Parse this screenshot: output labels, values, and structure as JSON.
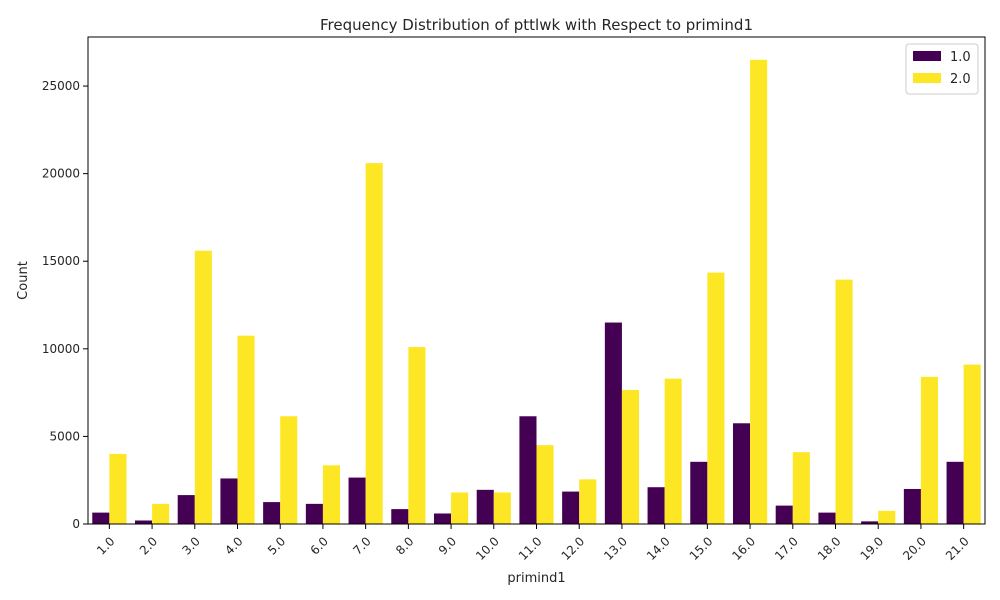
{
  "chart_data": {
    "type": "bar",
    "title": "Frequency Distribution of pttlwk with Respect to primind1",
    "xlabel": "primind1",
    "ylabel": "Count",
    "ylim": [
      0,
      27800
    ],
    "yticks": [
      0,
      5000,
      10000,
      15000,
      20000,
      25000
    ],
    "ytick_labels": [
      "0",
      "5000",
      "10000",
      "15000",
      "20000",
      "25000"
    ],
    "categories": [
      "1.0",
      "2.0",
      "3.0",
      "4.0",
      "5.0",
      "6.0",
      "7.0",
      "8.0",
      "9.0",
      "10.0",
      "11.0",
      "12.0",
      "13.0",
      "14.0",
      "15.0",
      "16.0",
      "17.0",
      "18.0",
      "19.0",
      "20.0",
      "21.0"
    ],
    "series": [
      {
        "name": "1.0",
        "color": "#440154",
        "values": [
          650,
          200,
          1650,
          2600,
          1250,
          1150,
          2650,
          850,
          600,
          1950,
          6150,
          1850,
          11500,
          2100,
          3550,
          5750,
          1050,
          650,
          150,
          2000,
          3550
        ]
      },
      {
        "name": "2.0",
        "color": "#fde725",
        "values": [
          4000,
          1150,
          15600,
          10750,
          6150,
          3350,
          20600,
          10100,
          1800,
          1800,
          4500,
          2550,
          7650,
          8300,
          14350,
          26500,
          4100,
          13950,
          750,
          8400,
          9100
        ]
      }
    ],
    "legend_position": "top-right",
    "grid": false
  }
}
